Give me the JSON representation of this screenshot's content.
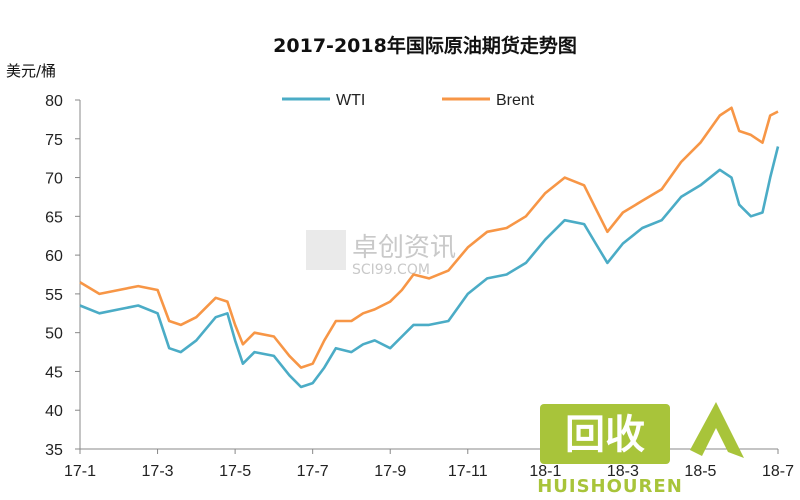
{
  "chart_data": {
    "type": "line",
    "title": "2017-2018年国际原油期货走势图",
    "ylabel": "美元/桶",
    "xlabel": "",
    "ylim": [
      35,
      80
    ],
    "yticks": [
      35,
      40,
      45,
      50,
      55,
      60,
      65,
      70,
      75,
      80
    ],
    "xlim": [
      0,
      18
    ],
    "xticks": [
      {
        "x": 0,
        "label": "17-1"
      },
      {
        "x": 2,
        "label": "17-3"
      },
      {
        "x": 4,
        "label": "17-5"
      },
      {
        "x": 6,
        "label": "17-7"
      },
      {
        "x": 8,
        "label": "17-9"
      },
      {
        "x": 10,
        "label": "17-11"
      },
      {
        "x": 12,
        "label": "18-1"
      },
      {
        "x": 14,
        "label": "18-3"
      },
      {
        "x": 16,
        "label": "18-5"
      },
      {
        "x": 18,
        "label": "18-7"
      }
    ],
    "grid": false,
    "legend_position": "top-center",
    "series": [
      {
        "name": "WTI",
        "color": "#4bacc6",
        "points": [
          [
            0,
            53.5
          ],
          [
            0.5,
            52.5
          ],
          [
            1,
            53
          ],
          [
            1.5,
            53.5
          ],
          [
            2,
            52.5
          ],
          [
            2.3,
            48
          ],
          [
            2.6,
            47.5
          ],
          [
            3,
            49
          ],
          [
            3.5,
            52
          ],
          [
            3.8,
            52.5
          ],
          [
            4,
            49
          ],
          [
            4.2,
            46
          ],
          [
            4.5,
            47.5
          ],
          [
            5,
            47
          ],
          [
            5.4,
            44.5
          ],
          [
            5.7,
            43
          ],
          [
            6,
            43.5
          ],
          [
            6.3,
            45.5
          ],
          [
            6.6,
            48
          ],
          [
            7,
            47.5
          ],
          [
            7.3,
            48.5
          ],
          [
            7.6,
            49
          ],
          [
            8,
            48
          ],
          [
            8.3,
            49.5
          ],
          [
            8.6,
            51
          ],
          [
            9,
            51
          ],
          [
            9.5,
            51.5
          ],
          [
            10,
            55
          ],
          [
            10.5,
            57
          ],
          [
            11,
            57.5
          ],
          [
            11.5,
            59
          ],
          [
            12,
            62
          ],
          [
            12.5,
            64.5
          ],
          [
            13,
            64
          ],
          [
            13.3,
            61.5
          ],
          [
            13.6,
            59
          ],
          [
            14,
            61.5
          ],
          [
            14.5,
            63.5
          ],
          [
            15,
            64.5
          ],
          [
            15.5,
            67.5
          ],
          [
            16,
            69
          ],
          [
            16.5,
            71
          ],
          [
            16.8,
            70
          ],
          [
            17,
            66.5
          ],
          [
            17.3,
            65
          ],
          [
            17.6,
            65.5
          ],
          [
            17.8,
            70
          ],
          [
            18,
            74
          ]
        ]
      },
      {
        "name": "Brent",
        "color": "#f79646",
        "points": [
          [
            0,
            56.5
          ],
          [
            0.5,
            55
          ],
          [
            1,
            55.5
          ],
          [
            1.5,
            56
          ],
          [
            2,
            55.5
          ],
          [
            2.3,
            51.5
          ],
          [
            2.6,
            51
          ],
          [
            3,
            52
          ],
          [
            3.5,
            54.5
          ],
          [
            3.8,
            54
          ],
          [
            4,
            51
          ],
          [
            4.2,
            48.5
          ],
          [
            4.5,
            50
          ],
          [
            5,
            49.5
          ],
          [
            5.4,
            47
          ],
          [
            5.7,
            45.5
          ],
          [
            6,
            46
          ],
          [
            6.3,
            49
          ],
          [
            6.6,
            51.5
          ],
          [
            7,
            51.5
          ],
          [
            7.3,
            52.5
          ],
          [
            7.6,
            53
          ],
          [
            8,
            54
          ],
          [
            8.3,
            55.5
          ],
          [
            8.6,
            57.5
          ],
          [
            9,
            57
          ],
          [
            9.5,
            58
          ],
          [
            10,
            61
          ],
          [
            10.5,
            63
          ],
          [
            11,
            63.5
          ],
          [
            11.5,
            65
          ],
          [
            12,
            68
          ],
          [
            12.5,
            70
          ],
          [
            13,
            69
          ],
          [
            13.3,
            66
          ],
          [
            13.6,
            63
          ],
          [
            14,
            65.5
          ],
          [
            14.5,
            67
          ],
          [
            15,
            68.5
          ],
          [
            15.5,
            72
          ],
          [
            16,
            74.5
          ],
          [
            16.5,
            78
          ],
          [
            16.8,
            79
          ],
          [
            17,
            76
          ],
          [
            17.3,
            75.5
          ],
          [
            17.6,
            74.5
          ],
          [
            17.8,
            78
          ],
          [
            18,
            78.5
          ]
        ]
      }
    ]
  },
  "watermark": {
    "text": "卓创资讯",
    "subtext": "SCI99.COM"
  },
  "logo": {
    "text": "回收",
    "subtext": "HUISHOUREN",
    "accent": "#a8c43a",
    "text_color": "#ffffff"
  }
}
